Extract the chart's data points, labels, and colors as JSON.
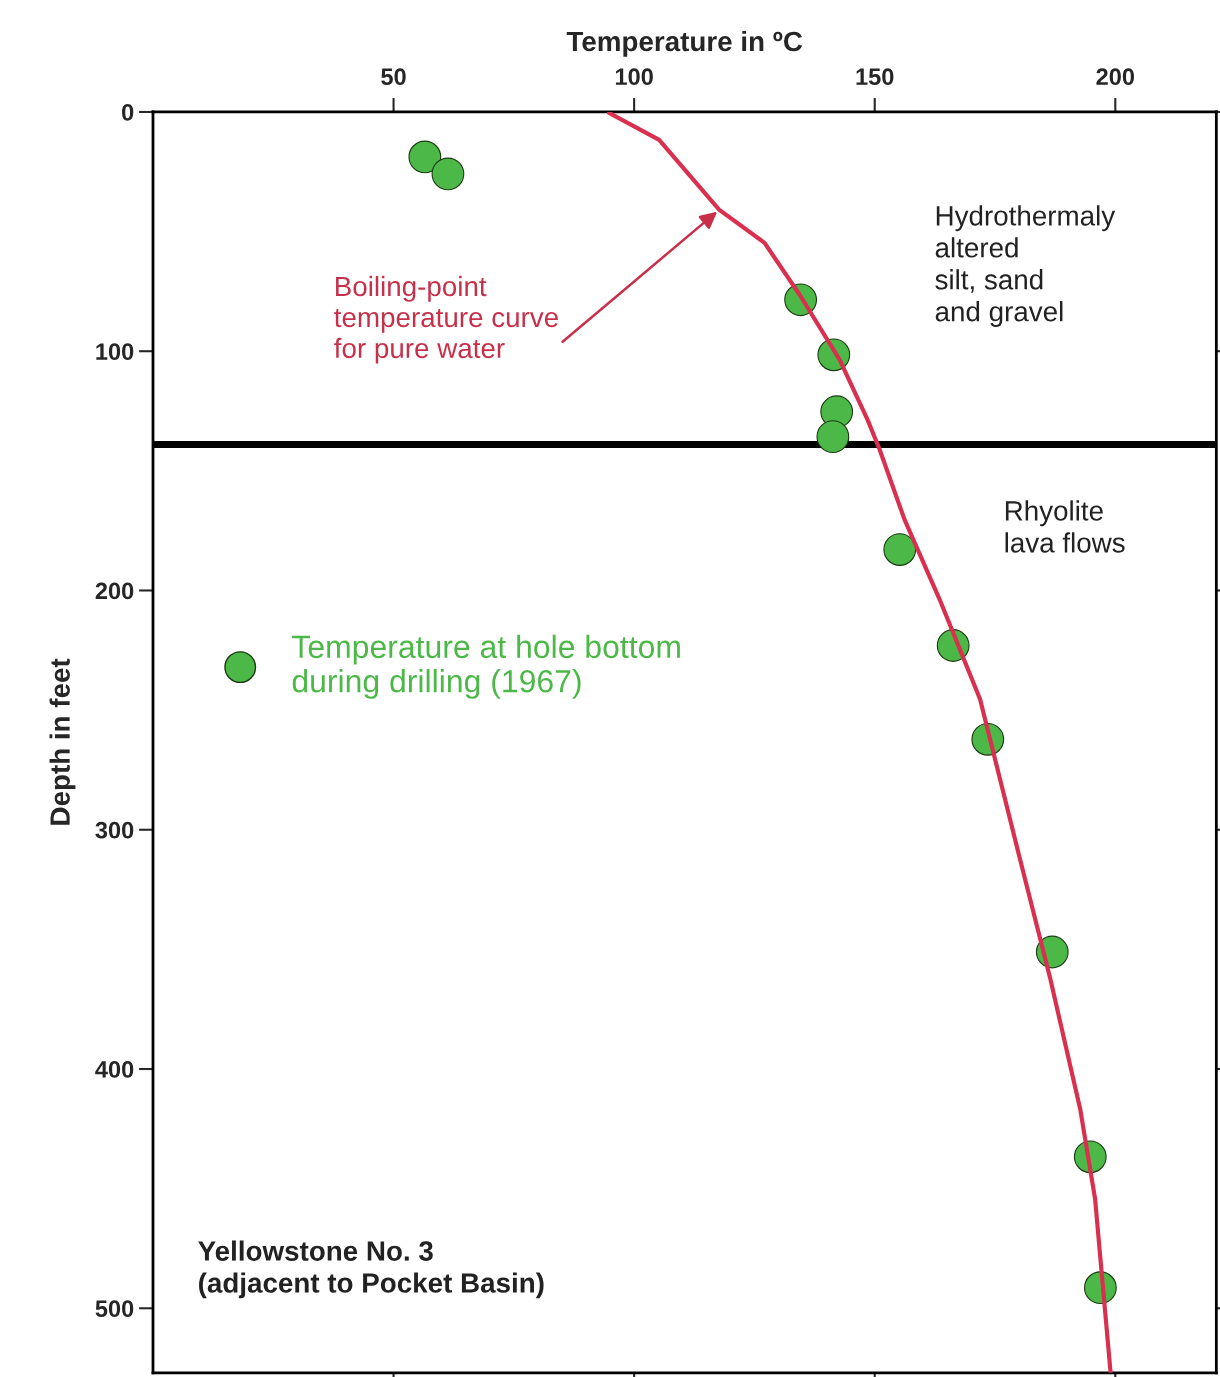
{
  "chart_data": {
    "type": "scatter",
    "xlabel": "Temperature in ºC",
    "ylabel": "Depth in feet",
    "xlim": [
      0,
      221
    ],
    "xticks": [
      50,
      100,
      150,
      200
    ],
    "ylim": [
      527,
      0
    ],
    "yticks": [
      0,
      100,
      200,
      300,
      400,
      500
    ],
    "grid": false,
    "legend": "left",
    "series": [
      {
        "name": "Temperature at hole bottom\nduring drilling (1967)",
        "marker": "circle",
        "color": "#4cb848",
        "x": [
          56.5,
          61.3,
          134.6,
          141.5,
          142.1,
          141.3,
          155.2,
          166.3,
          173.5,
          186.9,
          194.8,
          196.9
        ],
        "values": [
          18.8,
          25.9,
          78.5,
          101.5,
          125.3,
          135.7,
          182.9,
          223,
          262.2,
          351.1,
          436.7,
          491.4
        ]
      },
      {
        "type": "line",
        "color": "#d9304f",
        "x": [
          94.8,
          105.2,
          117.7,
          127.1,
          134.4,
          142.7,
          148.5,
          151,
          156.2,
          163.5,
          171.9,
          180.2,
          186.5,
          192.7,
          195.8,
          199
        ],
        "values": [
          0.4,
          11.7,
          40.9,
          54.7,
          76.4,
          103.5,
          128.6,
          141,
          170.4,
          203.8,
          245.5,
          312.3,
          362.4,
          416.7,
          454.3,
          526.5
        ]
      }
    ],
    "ref_lines": [
      {
        "axis": "y",
        "value": 139,
        "color": "#000000"
      }
    ],
    "annotations": [
      {
        "text": "Boiling-point\ntemperature curve\nfor pure water",
        "x": 117.7,
        "y": 40.9
      },
      "Hydrothermaly\naltered\nsilt, sand\nand gravel",
      "Rhyolite\nlava flows",
      "Yellowstone No. 3\n(adjacent to Pocket Basin)"
    ]
  }
}
